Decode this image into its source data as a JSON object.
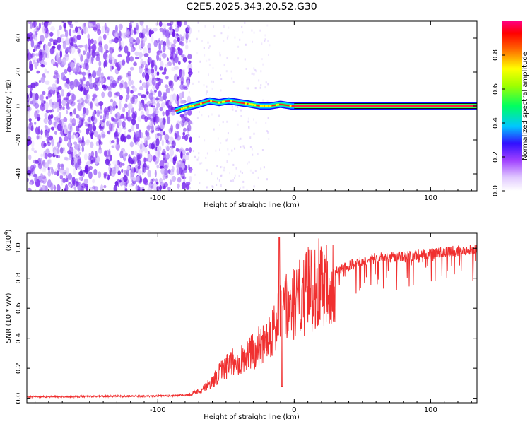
{
  "chart_data": [
    {
      "type": "heatmap",
      "title": "C2E5.2025.343.20.52.G30",
      "xlabel": "Height of straight line (km)",
      "ylabel": "Frequency (Hz)",
      "xlim": [
        -196,
        134
      ],
      "ylim": [
        -50,
        50
      ],
      "xticks": [
        -100,
        0,
        100
      ],
      "yticks": [
        -40,
        -20,
        0,
        20,
        40
      ],
      "colorbar": {
        "label": "Normalized spectral amplitude",
        "range": [
          0,
          1
        ],
        "ticks": [
          "0.0",
          "0.2",
          "0.4",
          "0.6",
          "0.8"
        ],
        "colors": [
          "#ffffff",
          "#e8d0ff",
          "#b060ff",
          "#6020e0",
          "#0010ff",
          "#00c0ff",
          "#00ff80",
          "#80ff00",
          "#ffff00",
          "#ff8000",
          "#ff0000",
          "#ff0080"
        ]
      },
      "noise_region": {
        "x_from": -196,
        "x_to": -80,
        "description_color": "#7a2cf0"
      },
      "signal_trace": {
        "x": [
          -87,
          -80,
          -70,
          -62,
          -55,
          -48,
          -40,
          -32,
          -25,
          -18,
          -10,
          -2,
          10,
          30,
          60,
          100,
          134
        ],
        "y": [
          -3,
          -1,
          1,
          3,
          2,
          3,
          2,
          1,
          0,
          0,
          1,
          0,
          0,
          0,
          0,
          0,
          0
        ]
      }
    },
    {
      "type": "line",
      "xlabel": "Height of straight line (km)",
      "ylabel": "SNR (10 * v/v)",
      "yscale_label": "(x10",
      "yscale_exp": "4",
      "yscale_close": ")",
      "xlim": [
        -196,
        134
      ],
      "ylim": [
        -0.03,
        1.1
      ],
      "xticks": [
        -100,
        0,
        100
      ],
      "yticks": [
        "0.0",
        "0.2",
        "0.4",
        "0.6",
        "0.8",
        "1.0"
      ],
      "series": [
        {
          "name": "SNR",
          "color": "#f03030",
          "x": [
            -196,
            -150,
            -100,
            -80,
            -70,
            -65,
            -60,
            -55,
            -50,
            -45,
            -40,
            -35,
            -30,
            -25,
            -20,
            -15,
            -12,
            -10,
            -8,
            -5,
            0,
            5,
            10,
            20,
            30,
            40,
            50,
            60,
            80,
            100,
            120,
            134
          ],
          "y": [
            0.01,
            0.012,
            0.015,
            0.02,
            0.05,
            0.08,
            0.12,
            0.18,
            0.22,
            0.26,
            0.28,
            0.3,
            0.34,
            0.38,
            0.45,
            0.5,
            0.55,
            0.6,
            0.62,
            0.65,
            0.68,
            0.72,
            0.78,
            0.85,
            0.88,
            0.92,
            0.95,
            0.97,
            0.98,
            1.0,
            1.02,
            1.03
          ]
        }
      ]
    }
  ]
}
